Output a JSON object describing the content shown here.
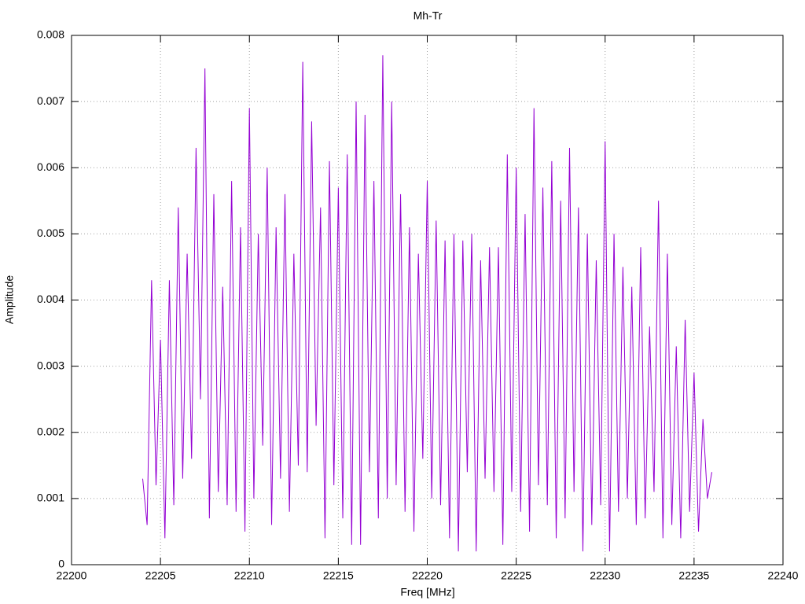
{
  "chart_data": {
    "type": "line",
    "title": "Mh-Tr",
    "x_label": "Freq [MHz]",
    "y_label": "Amplitude",
    "color": "#9400d3",
    "grid": true,
    "xlim": [
      22200,
      22240
    ],
    "xticks": [
      22200,
      22205,
      22210,
      22215,
      22220,
      22225,
      22230,
      22235,
      22240
    ],
    "ylim": [
      0,
      0.008
    ],
    "yticks": [
      0,
      0.001,
      0.002,
      0.003,
      0.004,
      0.005,
      0.006,
      0.007,
      0.008
    ],
    "x": [
      22204,
      22204.25,
      22204.5,
      22204.75,
      22205,
      22205.25,
      22205.5,
      22205.75,
      22206,
      22206.25,
      22206.5,
      22206.75,
      22207,
      22207.25,
      22207.5,
      22207.75,
      22208,
      22208.25,
      22208.5,
      22208.75,
      22209,
      22209.25,
      22209.5,
      22209.75,
      22210,
      22210.25,
      22210.5,
      22210.75,
      22211,
      22211.25,
      22211.5,
      22211.75,
      22212,
      22212.25,
      22212.5,
      22212.75,
      22213,
      22213.25,
      22213.5,
      22213.75,
      22214,
      22214.25,
      22214.5,
      22214.75,
      22215,
      22215.25,
      22215.5,
      22215.75,
      22216,
      22216.25,
      22216.5,
      22216.75,
      22217,
      22217.25,
      22217.5,
      22217.75,
      22218,
      22218.25,
      22218.5,
      22218.75,
      22219,
      22219.25,
      22219.5,
      22219.75,
      22220,
      22220.25,
      22220.5,
      22220.75,
      22221,
      22221.25,
      22221.5,
      22221.75,
      22222,
      22222.25,
      22222.5,
      22222.75,
      22223,
      22223.25,
      22223.5,
      22223.75,
      22224,
      22224.25,
      22224.5,
      22224.75,
      22225,
      22225.25,
      22225.5,
      22225.75,
      22226,
      22226.25,
      22226.5,
      22226.75,
      22227,
      22227.25,
      22227.5,
      22227.75,
      22228,
      22228.25,
      22228.5,
      22228.75,
      22229,
      22229.25,
      22229.5,
      22229.75,
      22230,
      22230.25,
      22230.5,
      22230.75,
      22231,
      22231.25,
      22231.5,
      22231.75,
      22232,
      22232.25,
      22232.5,
      22232.75,
      22233,
      22233.25,
      22233.5,
      22233.75,
      22234,
      22234.25,
      22234.5,
      22234.75,
      22235,
      22235.25,
      22235.5,
      22235.75,
      22236
    ],
    "values": [
      0.0013,
      0.0006,
      0.0043,
      0.0012,
      0.0034,
      0.0004,
      0.0043,
      0.0009,
      0.0054,
      0.0013,
      0.0047,
      0.0016,
      0.0063,
      0.0025,
      0.0075,
      0.0007,
      0.0056,
      0.0011,
      0.0042,
      0.0009,
      0.0058,
      0.0008,
      0.0051,
      0.0005,
      0.0069,
      0.001,
      0.005,
      0.0018,
      0.006,
      0.0006,
      0.0051,
      0.0013,
      0.0056,
      0.0008,
      0.0047,
      0.0015,
      0.0076,
      0.0014,
      0.0067,
      0.0021,
      0.0054,
      0.0004,
      0.0061,
      0.0012,
      0.0057,
      0.0007,
      0.0062,
      0.0003,
      0.007,
      0.0003,
      0.0068,
      0.0014,
      0.0058,
      0.0007,
      0.0077,
      0.001,
      0.007,
      0.0012,
      0.0056,
      0.0008,
      0.0051,
      0.0005,
      0.0047,
      0.0016,
      0.0058,
      0.001,
      0.0052,
      0.0009,
      0.0049,
      0.0004,
      0.005,
      0.0002,
      0.0049,
      0.0014,
      0.005,
      0.0002,
      0.0046,
      0.0013,
      0.0048,
      0.0011,
      0.0048,
      0.0003,
      0.0062,
      0.0011,
      0.006,
      0.0008,
      0.0053,
      0.0005,
      0.0069,
      0.0012,
      0.0057,
      0.0009,
      0.0061,
      0.0004,
      0.0055,
      0.0007,
      0.0063,
      0.0011,
      0.0054,
      0.0002,
      0.005,
      0.0006,
      0.0046,
      0.0009,
      0.0064,
      0.0002,
      0.005,
      0.0008,
      0.0045,
      0.001,
      0.0042,
      0.0006,
      0.0048,
      0.0007,
      0.0036,
      0.0011,
      0.0055,
      0.0004,
      0.0047,
      0.0006,
      0.0033,
      0.0004,
      0.0037,
      0.0008,
      0.0029,
      0.0005,
      0.0022,
      0.001,
      0.0014
    ]
  }
}
